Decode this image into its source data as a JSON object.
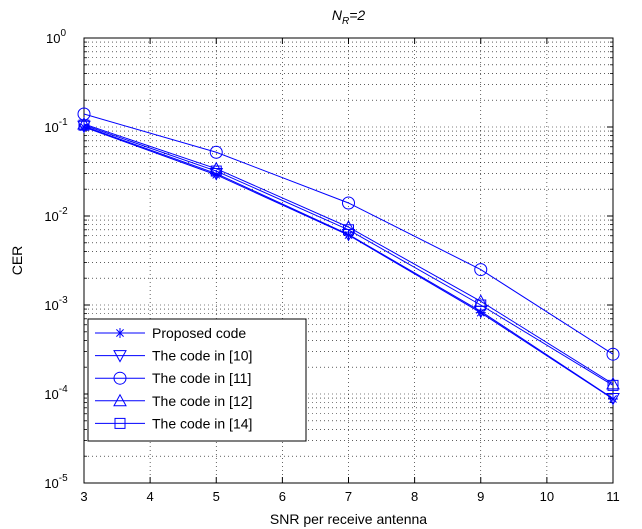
{
  "chart_data": {
    "type": "line",
    "title_main": "N",
    "title_sub": "R",
    "title_rest": "=2",
    "xlabel": "SNR per receive antenna",
    "ylabel": "CER",
    "x": [
      3,
      5,
      7,
      9,
      11
    ],
    "xlim": [
      3,
      11
    ],
    "ylim": [
      1e-05,
      1
    ],
    "yscale": "log",
    "xticks": [
      "3",
      "4",
      "5",
      "6",
      "7",
      "8",
      "9",
      "10",
      "11"
    ],
    "yticks": [
      {
        "base": "10",
        "exp": "-5",
        "value": 1e-05
      },
      {
        "base": "10",
        "exp": "-4",
        "value": 0.0001
      },
      {
        "base": "10",
        "exp": "-3",
        "value": 0.001
      },
      {
        "base": "10",
        "exp": "-2",
        "value": 0.01
      },
      {
        "base": "10",
        "exp": "-1",
        "value": 0.1
      },
      {
        "base": "10",
        "exp": "0",
        "value": 1
      }
    ],
    "grid": true,
    "legend_position": "bottom-left",
    "line_color": "#0000ff",
    "series": [
      {
        "name": "Proposed code",
        "marker": "star",
        "values": [
          0.1,
          0.029,
          0.0061,
          0.00082,
          8.8e-05
        ]
      },
      {
        "name": "The code in [10]",
        "marker": "triangle-down",
        "values": [
          0.102,
          0.03,
          0.0062,
          0.00085,
          8.9e-05
        ]
      },
      {
        "name": "The code in [11]",
        "marker": "circle",
        "values": [
          0.14,
          0.052,
          0.014,
          0.0025,
          0.00028
        ]
      },
      {
        "name": "The code in [12]",
        "marker": "triangle-up",
        "values": [
          0.108,
          0.034,
          0.0075,
          0.0011,
          0.00013
        ]
      },
      {
        "name": "The code in [14]",
        "marker": "square",
        "values": [
          0.105,
          0.032,
          0.007,
          0.001,
          0.000125
        ]
      }
    ]
  }
}
